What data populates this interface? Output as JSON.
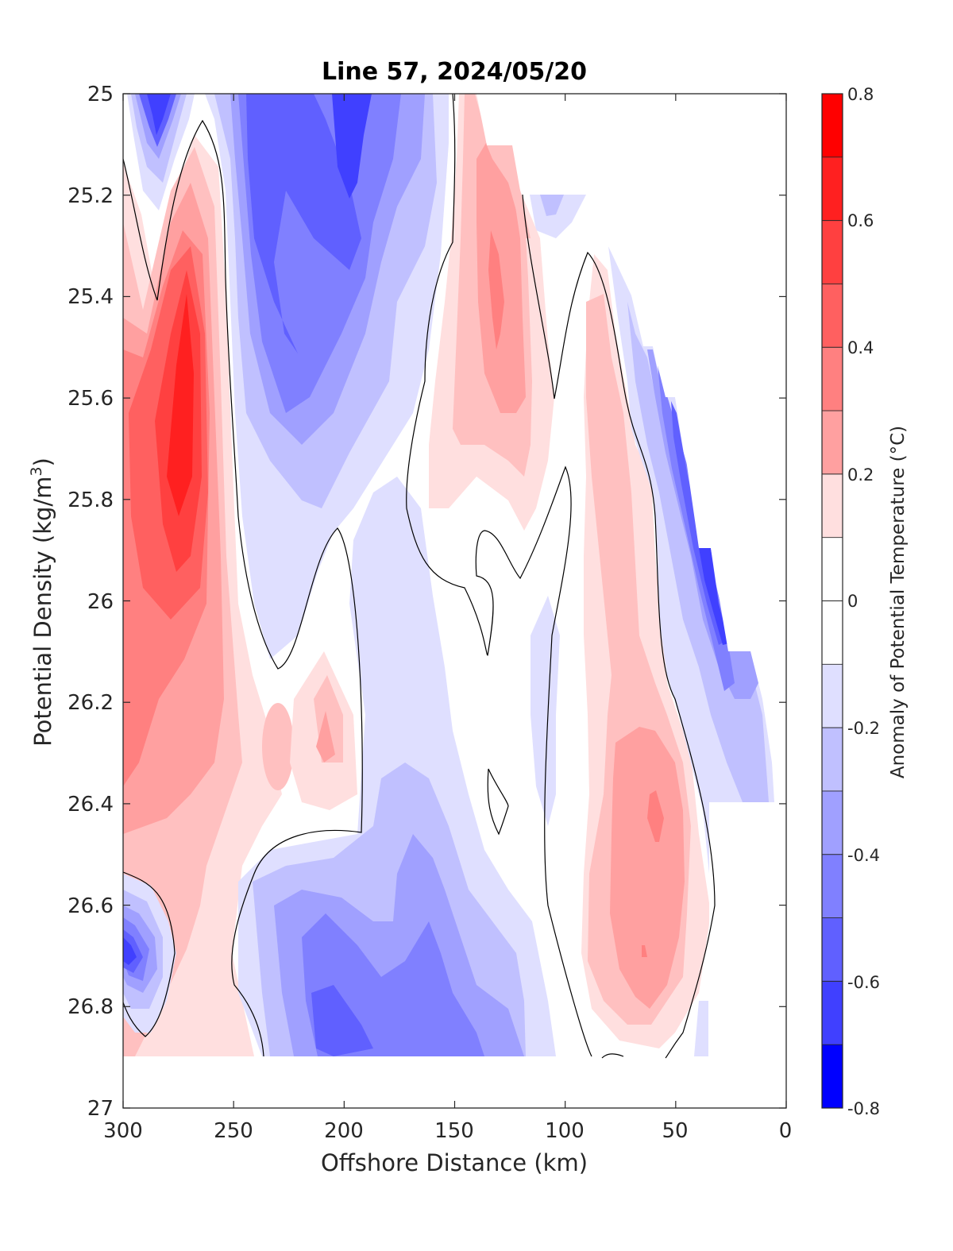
{
  "chart_data": {
    "type": "heatmap",
    "title": "Line 57, 2024/05/20",
    "xlabel": "Offshore Distance (km)",
    "ylabel_main": "Potential Density (kg/m",
    "ylabel_sup": "3",
    "ylabel_close": ")",
    "colorbar_label": "Anomaly of Potential Temperature (°C)",
    "xlim": [
      300,
      0
    ],
    "x_reversed": true,
    "ylim": [
      25,
      27
    ],
    "y_reversed": true,
    "x_ticks": [
      "300",
      "250",
      "200",
      "150",
      "100",
      "50",
      "0"
    ],
    "y_ticks": [
      "25",
      "25.2",
      "25.4",
      "25.6",
      "25.8",
      "26",
      "26.2",
      "26.4",
      "26.6",
      "26.8",
      "27"
    ],
    "colorbar_ticks": [
      "0.8",
      "0.6",
      "0.4",
      "0.2",
      "0",
      "-0.2",
      "-0.4",
      "-0.6",
      "-0.8"
    ],
    "colorbar_range": [
      -0.8,
      0.8
    ],
    "contour_levels": [
      -0.8,
      -0.7,
      -0.6,
      -0.5,
      -0.4,
      -0.3,
      -0.2,
      -0.1,
      0.1,
      0.2,
      0.3,
      0.4,
      0.5,
      0.6,
      0.7,
      0.8
    ],
    "colormap": {
      "-0.8": "#0000ff",
      "-0.7": "#2020ff",
      "-0.6": "#4040ff",
      "-0.5": "#6060ff",
      "-0.4": "#8080ff",
      "-0.3": "#a0a0ff",
      "-0.2": "#c0c0ff",
      "-0.1": "#dfdfff",
      "0": "#ffffff",
      "0.1": "#ffdfdf",
      "0.2": "#ffc0c0",
      "0.3": "#ffa0a0",
      "0.4": "#ff8080",
      "0.5": "#ff6060",
      "0.6": "#ff4040",
      "0.7": "#ff2020",
      "0.8": "#ff0000"
    },
    "data_extent": {
      "x": [
        300,
        5
      ],
      "y": [
        25.0,
        26.9
      ]
    },
    "grid": false,
    "features": [
      {
        "kind": "warm",
        "anomaly": 0.65,
        "x": [
          295,
          260
        ],
        "y": [
          25.35,
          25.85
        ]
      },
      {
        "kind": "cold",
        "anomaly": -0.55,
        "x": [
          295,
          280
        ],
        "y": [
          25.0,
          25.15
        ]
      },
      {
        "kind": "cold",
        "anomaly": -0.4,
        "x": [
          240,
          200
        ],
        "y": [
          25.0,
          25.65
        ]
      },
      {
        "kind": "warm",
        "anomaly": 0.35,
        "x": [
          145,
          115
        ],
        "y": [
          25.1,
          25.75
        ]
      },
      {
        "kind": "warm",
        "anomaly": 0.25,
        "x": [
          85,
          40
        ],
        "y": [
          25.4,
          26.8
        ]
      },
      {
        "kind": "cold",
        "anomaly": -0.5,
        "x": [
          50,
          25
        ],
        "y": [
          25.5,
          26.4
        ]
      },
      {
        "kind": "cold",
        "anomaly": -0.35,
        "x": [
          220,
          160
        ],
        "y": [
          26.4,
          26.9
        ]
      },
      {
        "kind": "cold",
        "anomaly": -0.45,
        "x": [
          300,
          290
        ],
        "y": [
          26.6,
          26.8
        ]
      }
    ]
  }
}
